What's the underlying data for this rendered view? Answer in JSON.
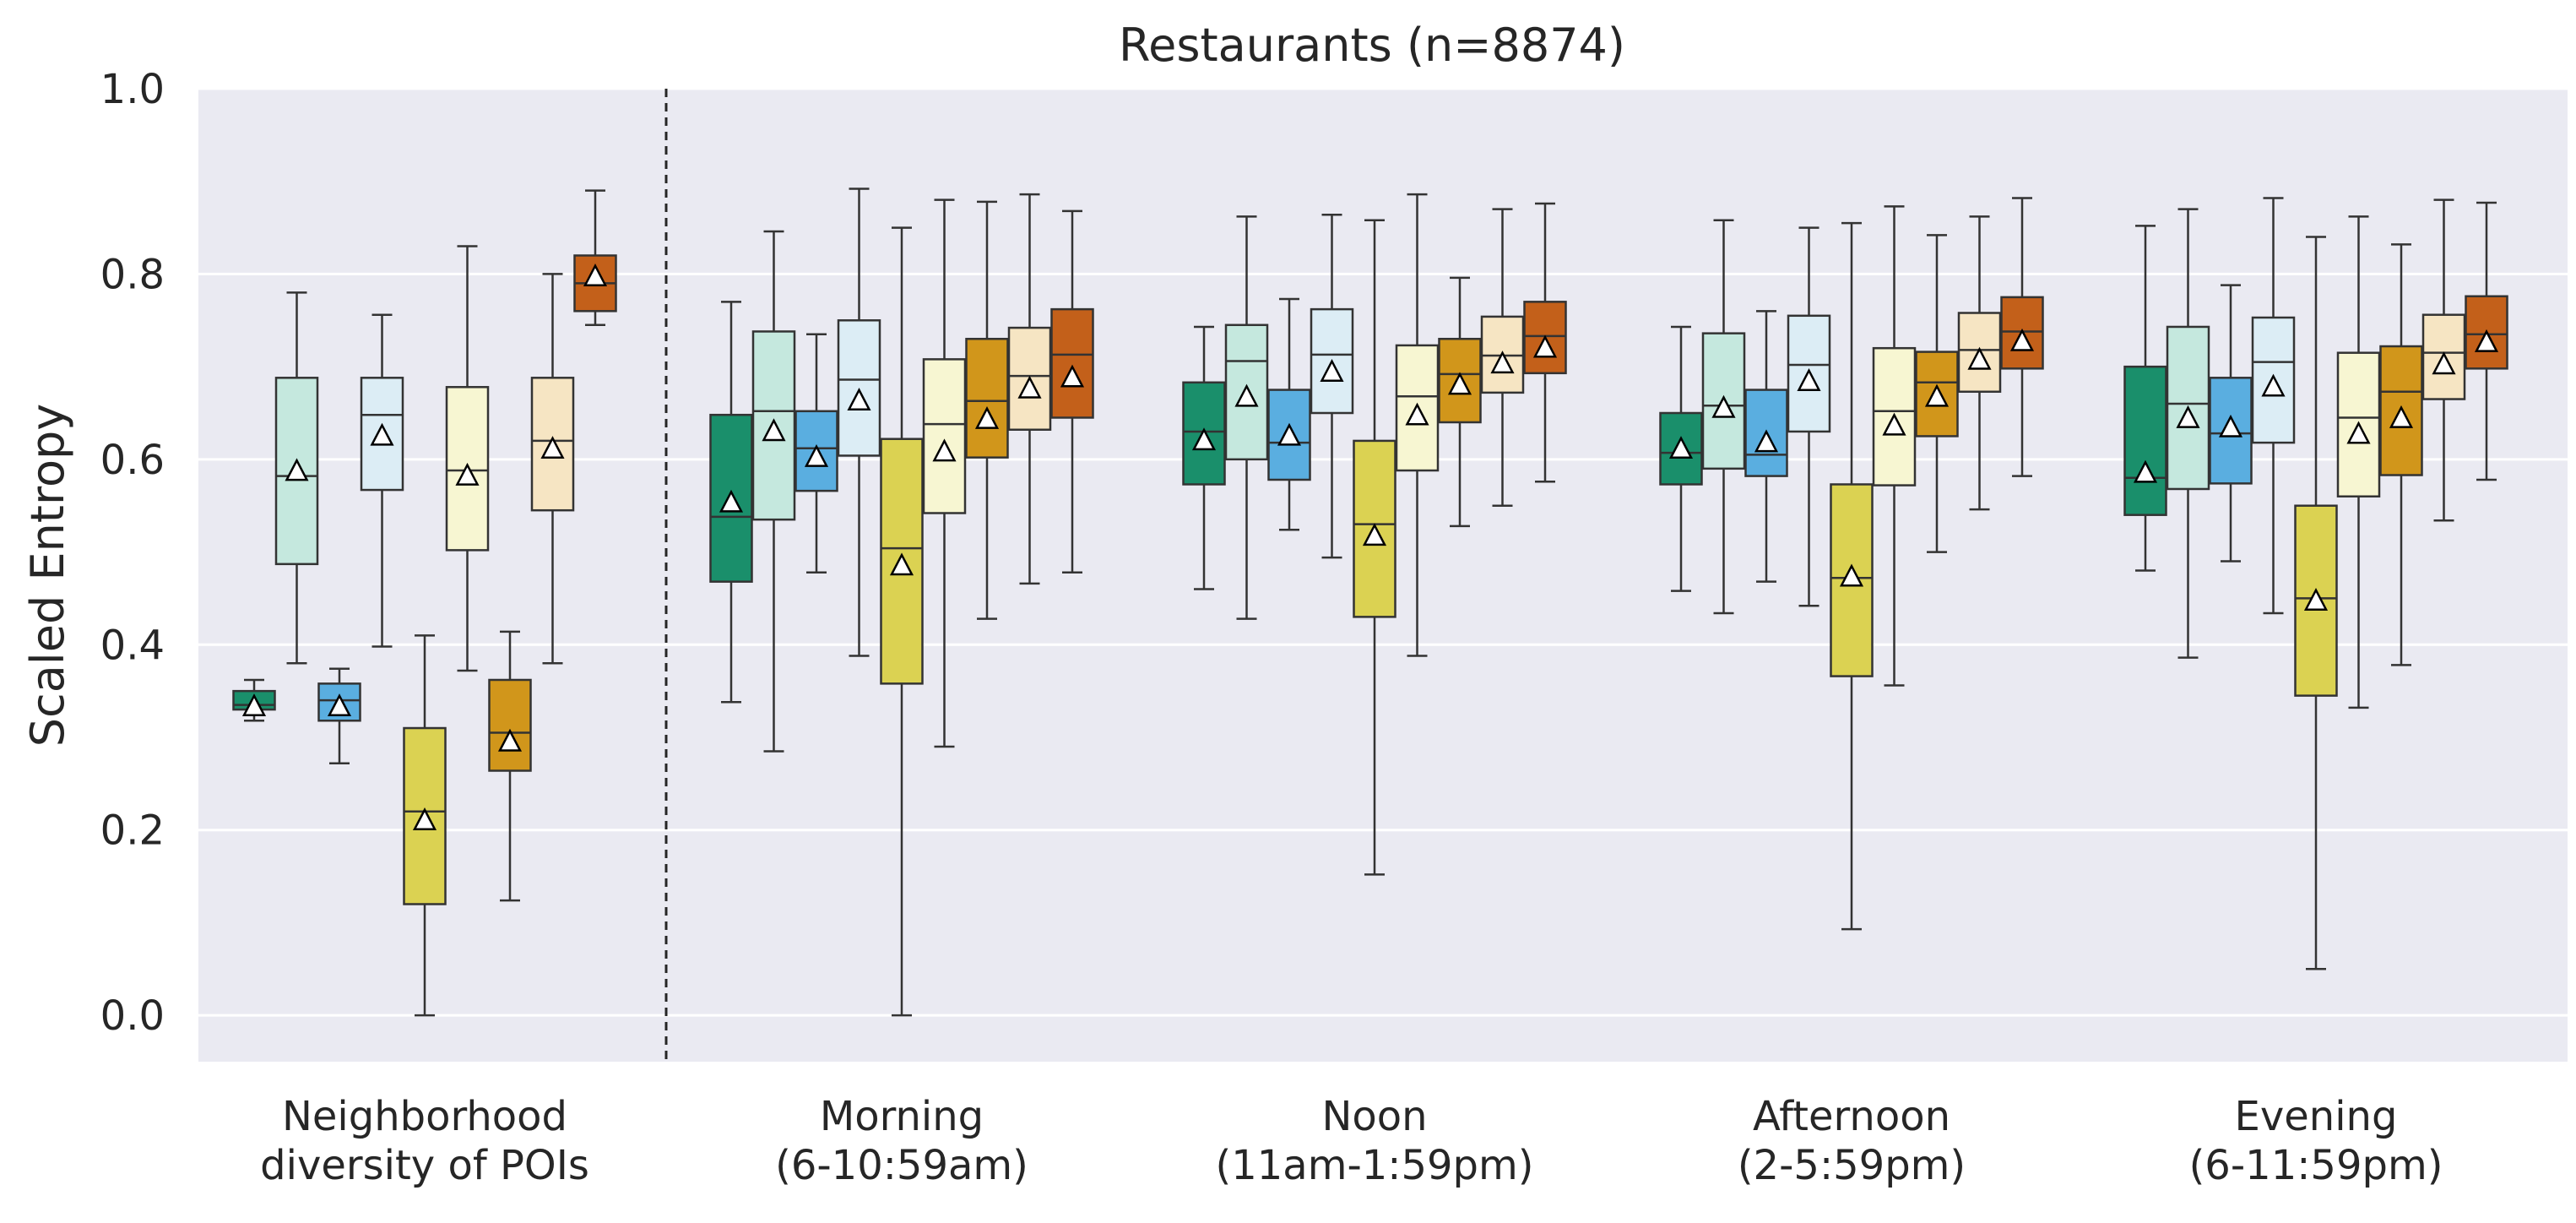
{
  "chart_data": {
    "type": "box",
    "title": "Restaurants (n=8874)",
    "ylabel": "Scaled Entropy",
    "xlabel": "",
    "ylim": [
      -0.05,
      1.0
    ],
    "yticks": [
      "0.0",
      "0.2",
      "0.4",
      "0.6",
      "0.8",
      "1.0"
    ],
    "grid": true,
    "legend": "none",
    "categories": [
      [
        "Neighborhood",
        "diversity of POIs"
      ],
      [
        "Morning",
        "(6-10:59am)"
      ],
      [
        "Noon",
        "(11am-1:59pm)"
      ],
      [
        "Afternoon",
        "(2-5:59pm)"
      ],
      [
        "Evening",
        "(6-11:59pm)"
      ]
    ],
    "series_colors": [
      "#1a8f6b",
      "#c5e8de",
      "#5aaee0",
      "#dcedf5",
      "#dbd252",
      "#f7f6d2",
      "#d1961b",
      "#f6e5c3",
      "#c3601a"
    ],
    "mean_marker": "white triangle",
    "divider_after_category": 0,
    "groups": [
      {
        "category": "Neighborhood diversity of POIs",
        "boxes": [
          {
            "whislo": 0.318,
            "q1": 0.33,
            "med": 0.335,
            "q3": 0.35,
            "whishi": 0.362,
            "mean": 0.333
          },
          {
            "whislo": 0.38,
            "q1": 0.487,
            "med": 0.582,
            "q3": 0.688,
            "whishi": 0.78,
            "mean": 0.587
          },
          {
            "whislo": 0.272,
            "q1": 0.318,
            "med": 0.34,
            "q3": 0.358,
            "whishi": 0.374,
            "mean": 0.333
          },
          {
            "whislo": 0.398,
            "q1": 0.567,
            "med": 0.648,
            "q3": 0.688,
            "whishi": 0.756,
            "mean": 0.625
          },
          {
            "whislo": 0.0,
            "q1": 0.12,
            "med": 0.22,
            "q3": 0.31,
            "whishi": 0.41,
            "mean": 0.21
          },
          {
            "whislo": 0.372,
            "q1": 0.502,
            "med": 0.588,
            "q3": 0.678,
            "whishi": 0.83,
            "mean": 0.582
          },
          {
            "whislo": 0.124,
            "q1": 0.264,
            "med": 0.305,
            "q3": 0.362,
            "whishi": 0.414,
            "mean": 0.295
          },
          {
            "whislo": 0.38,
            "q1": 0.545,
            "med": 0.62,
            "q3": 0.688,
            "whishi": 0.8,
            "mean": 0.611
          },
          {
            "whislo": 0.745,
            "q1": 0.76,
            "med": 0.79,
            "q3": 0.82,
            "whishi": 0.89,
            "mean": 0.797
          }
        ]
      },
      {
        "category": "Morning (6-10:59am)",
        "boxes": [
          {
            "whislo": 0.338,
            "q1": 0.468,
            "med": 0.538,
            "q3": 0.648,
            "whishi": 0.77,
            "mean": 0.553
          },
          {
            "whislo": 0.285,
            "q1": 0.535,
            "med": 0.652,
            "q3": 0.738,
            "whishi": 0.846,
            "mean": 0.63
          },
          {
            "whislo": 0.478,
            "q1": 0.566,
            "med": 0.612,
            "q3": 0.652,
            "whishi": 0.735,
            "mean": 0.602
          },
          {
            "whislo": 0.388,
            "q1": 0.604,
            "med": 0.686,
            "q3": 0.75,
            "whishi": 0.892,
            "mean": 0.663
          },
          {
            "whislo": 0.0,
            "q1": 0.358,
            "med": 0.504,
            "q3": 0.622,
            "whishi": 0.85,
            "mean": 0.485
          },
          {
            "whislo": 0.29,
            "q1": 0.542,
            "med": 0.638,
            "q3": 0.708,
            "whishi": 0.88,
            "mean": 0.608
          },
          {
            "whislo": 0.428,
            "q1": 0.602,
            "med": 0.663,
            "q3": 0.73,
            "whishi": 0.878,
            "mean": 0.643
          },
          {
            "whislo": 0.466,
            "q1": 0.632,
            "med": 0.69,
            "q3": 0.742,
            "whishi": 0.886,
            "mean": 0.676
          },
          {
            "whislo": 0.478,
            "q1": 0.645,
            "med": 0.713,
            "q3": 0.762,
            "whishi": 0.868,
            "mean": 0.688
          }
        ]
      },
      {
        "category": "Noon (11am-1:59pm)",
        "boxes": [
          {
            "whislo": 0.46,
            "q1": 0.573,
            "med": 0.63,
            "q3": 0.683,
            "whishi": 0.743,
            "mean": 0.62
          },
          {
            "whislo": 0.428,
            "q1": 0.6,
            "med": 0.706,
            "q3": 0.745,
            "whishi": 0.862,
            "mean": 0.667
          },
          {
            "whislo": 0.524,
            "q1": 0.578,
            "med": 0.618,
            "q3": 0.675,
            "whishi": 0.773,
            "mean": 0.625
          },
          {
            "whislo": 0.494,
            "q1": 0.65,
            "med": 0.713,
            "q3": 0.762,
            "whishi": 0.864,
            "mean": 0.694
          },
          {
            "whislo": 0.152,
            "q1": 0.43,
            "med": 0.53,
            "q3": 0.62,
            "whishi": 0.858,
            "mean": 0.517
          },
          {
            "whislo": 0.388,
            "q1": 0.588,
            "med": 0.668,
            "q3": 0.723,
            "whishi": 0.886,
            "mean": 0.647
          },
          {
            "whislo": 0.528,
            "q1": 0.64,
            "med": 0.692,
            "q3": 0.73,
            "whishi": 0.796,
            "mean": 0.68
          },
          {
            "whislo": 0.55,
            "q1": 0.672,
            "med": 0.712,
            "q3": 0.754,
            "whishi": 0.87,
            "mean": 0.703
          },
          {
            "whislo": 0.576,
            "q1": 0.693,
            "med": 0.733,
            "q3": 0.77,
            "whishi": 0.876,
            "mean": 0.72
          }
        ]
      },
      {
        "category": "Afternoon (2-5:59pm)",
        "boxes": [
          {
            "whislo": 0.458,
            "q1": 0.573,
            "med": 0.607,
            "q3": 0.65,
            "whishi": 0.743,
            "mean": 0.611
          },
          {
            "whislo": 0.434,
            "q1": 0.59,
            "med": 0.658,
            "q3": 0.736,
            "whishi": 0.858,
            "mean": 0.655
          },
          {
            "whislo": 0.468,
            "q1": 0.582,
            "med": 0.605,
            "q3": 0.675,
            "whishi": 0.76,
            "mean": 0.618
          },
          {
            "whislo": 0.442,
            "q1": 0.63,
            "med": 0.702,
            "q3": 0.755,
            "whishi": 0.85,
            "mean": 0.684
          },
          {
            "whislo": 0.093,
            "q1": 0.366,
            "med": 0.472,
            "q3": 0.573,
            "whishi": 0.855,
            "mean": 0.473
          },
          {
            "whislo": 0.356,
            "q1": 0.572,
            "med": 0.652,
            "q3": 0.72,
            "whishi": 0.873,
            "mean": 0.636
          },
          {
            "whislo": 0.5,
            "q1": 0.625,
            "med": 0.683,
            "q3": 0.716,
            "whishi": 0.842,
            "mean": 0.667
          },
          {
            "whislo": 0.546,
            "q1": 0.673,
            "med": 0.718,
            "q3": 0.758,
            "whishi": 0.862,
            "mean": 0.707
          },
          {
            "whislo": 0.582,
            "q1": 0.698,
            "med": 0.738,
            "q3": 0.775,
            "whishi": 0.882,
            "mean": 0.727
          }
        ]
      },
      {
        "category": "Evening (6-11:59pm)",
        "boxes": [
          {
            "whislo": 0.48,
            "q1": 0.54,
            "med": 0.58,
            "q3": 0.7,
            "whishi": 0.852,
            "mean": 0.585
          },
          {
            "whislo": 0.386,
            "q1": 0.568,
            "med": 0.66,
            "q3": 0.743,
            "whishi": 0.87,
            "mean": 0.644
          },
          {
            "whislo": 0.49,
            "q1": 0.574,
            "med": 0.628,
            "q3": 0.688,
            "whishi": 0.788,
            "mean": 0.634
          },
          {
            "whislo": 0.434,
            "q1": 0.618,
            "med": 0.705,
            "q3": 0.753,
            "whishi": 0.882,
            "mean": 0.678
          },
          {
            "whislo": 0.05,
            "q1": 0.345,
            "med": 0.45,
            "q3": 0.55,
            "whishi": 0.84,
            "mean": 0.447
          },
          {
            "whislo": 0.332,
            "q1": 0.56,
            "med": 0.645,
            "q3": 0.715,
            "whishi": 0.862,
            "mean": 0.627
          },
          {
            "whislo": 0.378,
            "q1": 0.583,
            "med": 0.673,
            "q3": 0.722,
            "whishi": 0.832,
            "mean": 0.644
          },
          {
            "whislo": 0.534,
            "q1": 0.665,
            "med": 0.715,
            "q3": 0.756,
            "whishi": 0.88,
            "mean": 0.702
          },
          {
            "whislo": 0.578,
            "q1": 0.698,
            "med": 0.735,
            "q3": 0.776,
            "whishi": 0.877,
            "mean": 0.726
          }
        ]
      }
    ]
  }
}
